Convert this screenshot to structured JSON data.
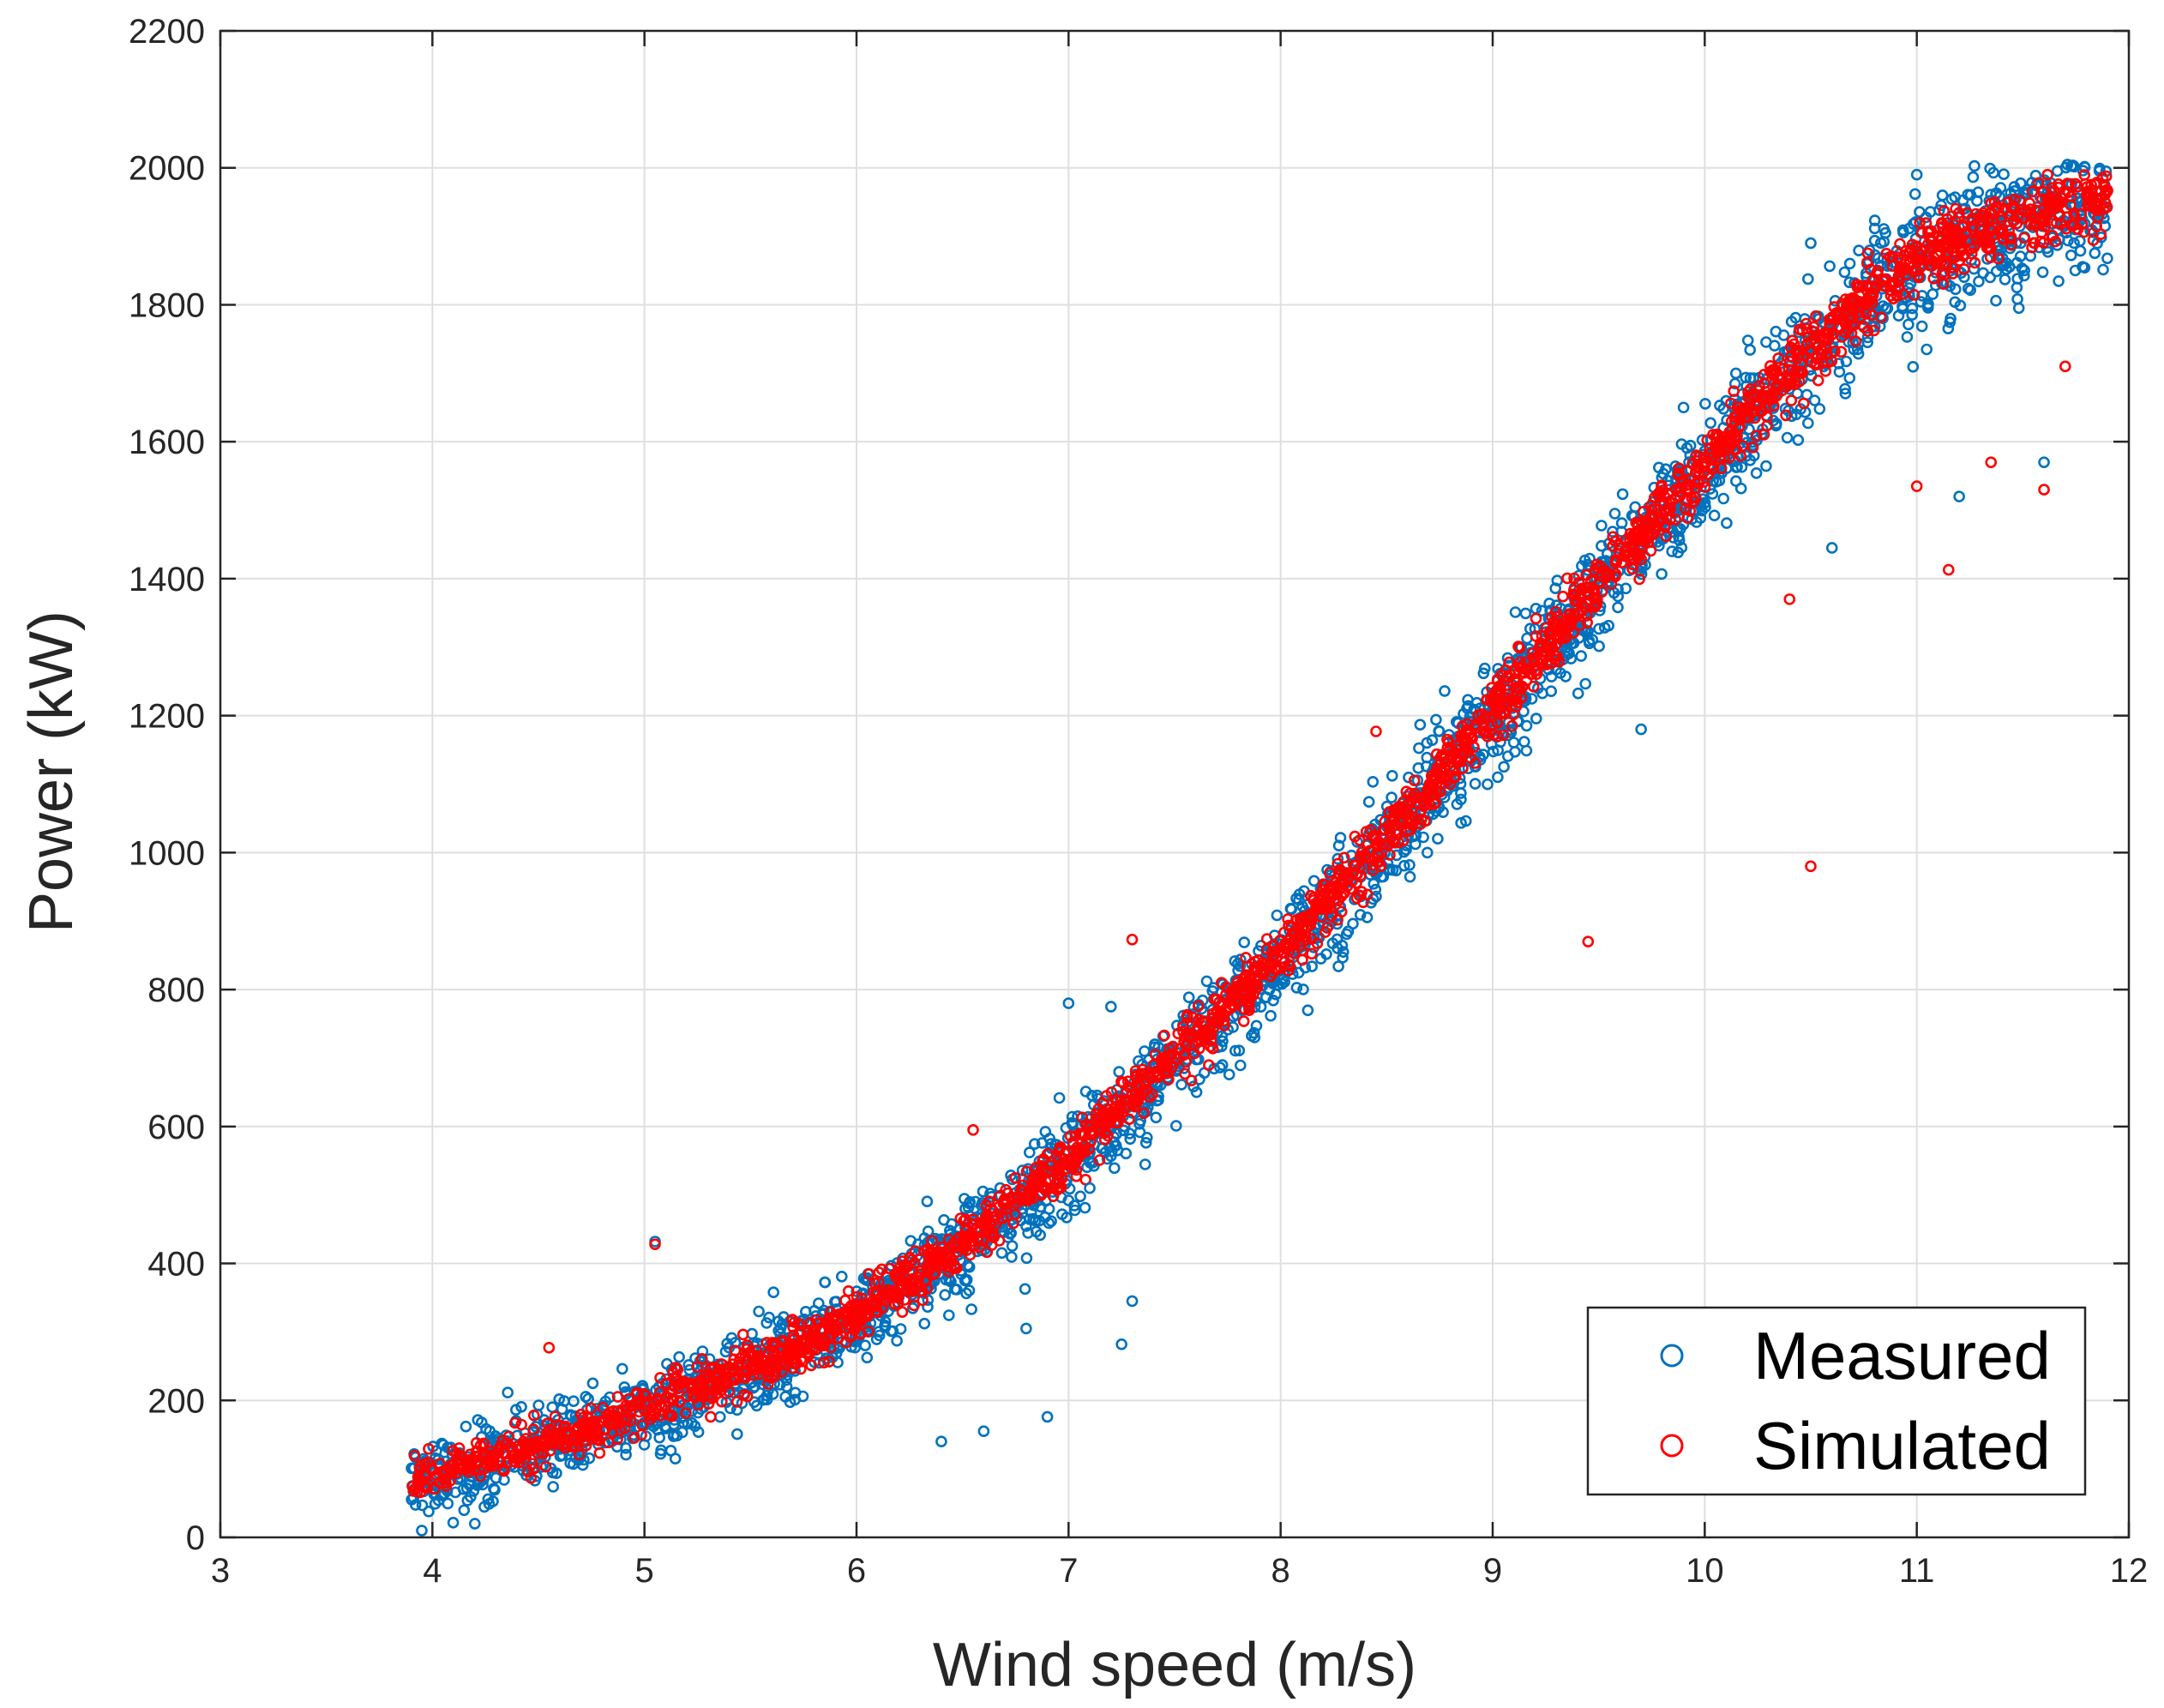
{
  "chart_data": {
    "type": "scatter",
    "title": "",
    "xlabel": "Wind speed (m/s)",
    "ylabel": "Power (kW)",
    "xlim": [
      3,
      12
    ],
    "ylim": [
      0,
      2200
    ],
    "xticks": [
      3,
      4,
      5,
      6,
      7,
      8,
      9,
      10,
      11,
      12
    ],
    "yticks": [
      0,
      200,
      400,
      600,
      800,
      1000,
      1200,
      1400,
      1600,
      1800,
      2000,
      2200
    ],
    "grid": true,
    "legend_position": "bottom-right",
    "series": [
      {
        "name": "Measured",
        "color": "#0072bd",
        "marker": "circle-open",
        "x": [
          3.9,
          4.0,
          4.2,
          4.5,
          4.8,
          5.0,
          5.2,
          5.5,
          5.8,
          6.0,
          6.2,
          6.5,
          6.8,
          7.0,
          7.2,
          7.5,
          7.8,
          8.0,
          8.2,
          8.5,
          8.8,
          9.0,
          9.2,
          9.5,
          9.8,
          10.0,
          10.2,
          10.5,
          10.8,
          11.0,
          11.2,
          11.5,
          11.8,
          11.9
        ],
        "values": [
          75,
          85,
          105,
          130,
          160,
          185,
          210,
          245,
          285,
          320,
          360,
          425,
          495,
          550,
          610,
          695,
          780,
          845,
          910,
          1015,
          1120,
          1195,
          1270,
          1385,
          1490,
          1560,
          1630,
          1725,
          1810,
          1860,
          1890,
          1920,
          1945,
          1955
        ]
      },
      {
        "name": "Simulated",
        "color": "#ff0000",
        "marker": "circle-open",
        "x": [
          3.9,
          4.0,
          4.2,
          4.5,
          4.8,
          5.0,
          5.2,
          5.5,
          5.8,
          6.0,
          6.2,
          6.5,
          6.8,
          7.0,
          7.2,
          7.5,
          7.8,
          8.0,
          8.2,
          8.5,
          8.8,
          9.0,
          9.2,
          9.5,
          9.8,
          10.0,
          10.2,
          10.5,
          10.8,
          11.0,
          11.2,
          11.5,
          11.8,
          11.9
        ],
        "values": [
          80,
          90,
          110,
          135,
          165,
          190,
          215,
          250,
          290,
          325,
          365,
          430,
          500,
          555,
          615,
          700,
          790,
          855,
          920,
          1025,
          1130,
          1205,
          1280,
          1395,
          1500,
          1570,
          1640,
          1735,
          1815,
          1865,
          1895,
          1925,
          1950,
          1958
        ]
      }
    ],
    "outliers": {
      "measured": [
        {
          "x": 5.05,
          "y": 432
        },
        {
          "x": 7.0,
          "y": 780
        },
        {
          "x": 7.2,
          "y": 775
        },
        {
          "x": 7.3,
          "y": 345
        },
        {
          "x": 7.25,
          "y": 282
        },
        {
          "x": 6.9,
          "y": 176
        },
        {
          "x": 6.6,
          "y": 155
        },
        {
          "x": 6.8,
          "y": 305
        },
        {
          "x": 9.7,
          "y": 1180
        },
        {
          "x": 10.5,
          "y": 1890
        },
        {
          "x": 11.2,
          "y": 1520
        },
        {
          "x": 11.6,
          "y": 1570
        },
        {
          "x": 10.6,
          "y": 1445
        },
        {
          "x": 9.9,
          "y": 1650
        },
        {
          "x": 11.0,
          "y": 1990
        },
        {
          "x": 3.95,
          "y": 10
        },
        {
          "x": 4.2,
          "y": 20
        },
        {
          "x": 6.4,
          "y": 140
        },
        {
          "x": 7.1,
          "y": 510
        }
      ],
      "simulated": [
        {
          "x": 5.05,
          "y": 428
        },
        {
          "x": 7.3,
          "y": 873
        },
        {
          "x": 9.45,
          "y": 870
        },
        {
          "x": 10.5,
          "y": 980
        },
        {
          "x": 11.15,
          "y": 1413
        },
        {
          "x": 11.35,
          "y": 1570
        },
        {
          "x": 11.6,
          "y": 1530
        },
        {
          "x": 11.0,
          "y": 1535
        },
        {
          "x": 8.45,
          "y": 1177
        },
        {
          "x": 4.55,
          "y": 277
        },
        {
          "x": 10.4,
          "y": 1370
        },
        {
          "x": 11.7,
          "y": 1710
        },
        {
          "x": 6.55,
          "y": 595
        }
      ]
    }
  },
  "legend": {
    "items": [
      {
        "label": "Measured",
        "color": "#0072bd"
      },
      {
        "label": "Simulated",
        "color": "#ff0000"
      }
    ]
  }
}
